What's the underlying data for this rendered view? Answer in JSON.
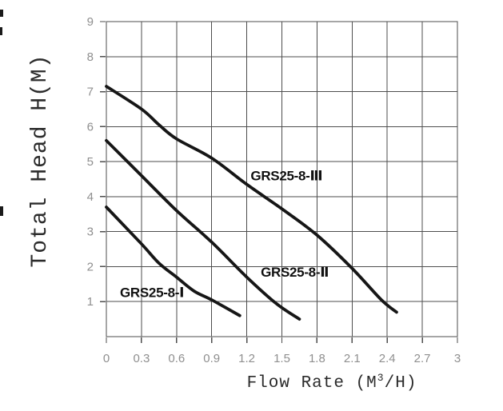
{
  "chart_data": {
    "type": "line",
    "title": "",
    "ylabel": "Total Head H(M)",
    "xlabel": {
      "prefix": "Flow Rate (M",
      "sup": "3",
      "suffix": "/H)"
    },
    "xlim": [
      0,
      3
    ],
    "ylim": [
      0,
      9
    ],
    "xtick_values": [
      0,
      0.3,
      0.6,
      0.9,
      1.2,
      1.5,
      1.8,
      2.1,
      2.4,
      2.7,
      3
    ],
    "xtick_labels": [
      "0",
      "0.3",
      "0.6",
      "0.9",
      "1.2",
      "1.5",
      "1.8",
      "2.1",
      "2.4",
      "2.7",
      "3"
    ],
    "ytick_values": [
      1,
      2,
      3,
      4,
      5,
      6,
      7,
      8,
      9
    ],
    "ytick_labels": [
      "1",
      "2",
      "3",
      "4",
      "5",
      "6",
      "7",
      "8",
      "9"
    ],
    "grid": true,
    "legend_position": "inline-labels",
    "series": [
      {
        "name": "GRS25-8-Ⅲ",
        "points": [
          [
            0,
            7.15
          ],
          [
            0.3,
            6.5
          ],
          [
            0.45,
            6.05
          ],
          [
            0.6,
            5.65
          ],
          [
            0.9,
            5.1
          ],
          [
            1.2,
            4.35
          ],
          [
            1.5,
            3.65
          ],
          [
            1.8,
            2.9
          ],
          [
            2.1,
            1.95
          ],
          [
            2.35,
            1.05
          ],
          [
            2.48,
            0.7
          ]
        ],
        "label_x": 1.54,
        "label_y": 4.6
      },
      {
        "name": "GRS25-8-Ⅱ",
        "points": [
          [
            0,
            5.6
          ],
          [
            0.3,
            4.6
          ],
          [
            0.6,
            3.6
          ],
          [
            0.9,
            2.7
          ],
          [
            1.2,
            1.7
          ],
          [
            1.45,
            0.95
          ],
          [
            1.65,
            0.5
          ]
        ],
        "label_x": 1.61,
        "label_y": 1.85
      },
      {
        "name": "GRS25-8-Ⅰ",
        "points": [
          [
            0,
            3.7
          ],
          [
            0.3,
            2.65
          ],
          [
            0.45,
            2.1
          ],
          [
            0.6,
            1.7
          ],
          [
            0.75,
            1.3
          ],
          [
            0.9,
            1.05
          ],
          [
            1.14,
            0.6
          ]
        ],
        "label_x": 0.39,
        "label_y": 1.27
      }
    ],
    "colors": {
      "curve": "#161616",
      "grid": "#4e4e4e",
      "tick_label": "#8f8f8f",
      "axis_label": "#2b2b2b",
      "series_label": "#111111",
      "background": "#ffffff"
    }
  }
}
